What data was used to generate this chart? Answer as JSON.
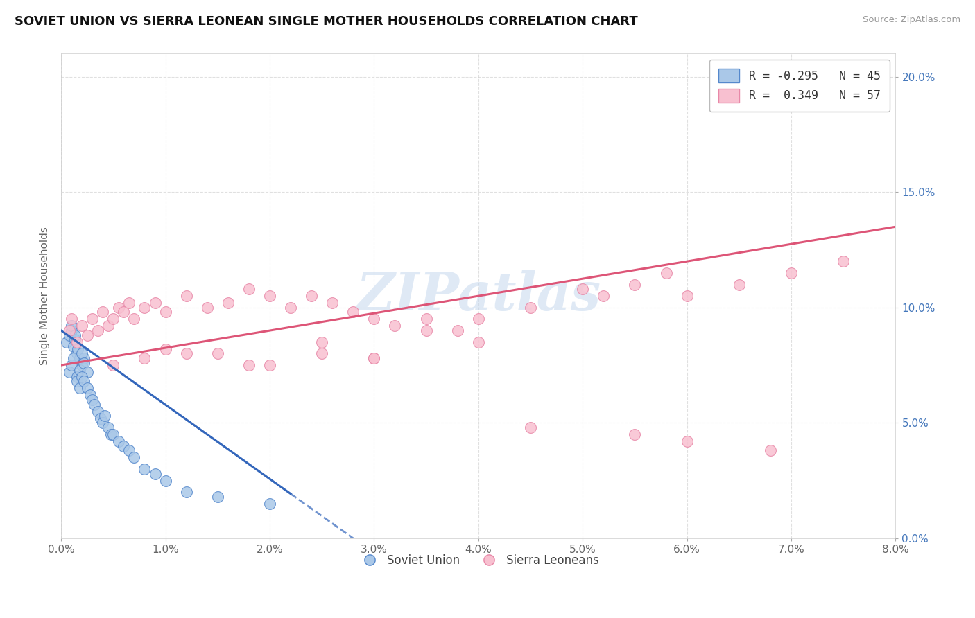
{
  "title": "SOVIET UNION VS SIERRA LEONEAN SINGLE MOTHER HOUSEHOLDS CORRELATION CHART",
  "source": "Source: ZipAtlas.com",
  "ylabel": "Single Mother Households",
  "xlim": [
    0.0,
    8.0
  ],
  "ylim": [
    0.0,
    21.0
  ],
  "x_ticks": [
    0.0,
    1.0,
    2.0,
    3.0,
    4.0,
    5.0,
    6.0,
    7.0,
    8.0
  ],
  "y_ticks": [
    0.0,
    5.0,
    10.0,
    15.0,
    20.0
  ],
  "legend_r_labels": [
    "R = -0.295   N = 45",
    "R =  0.349   N = 57"
  ],
  "legend_labels": [
    "Soviet Union",
    "Sierra Leoneans"
  ],
  "blue_face": "#aac8e8",
  "blue_edge": "#5588cc",
  "pink_face": "#f8c0d0",
  "pink_edge": "#e888a8",
  "blue_line": "#3366bb",
  "pink_line": "#dd5577",
  "watermark": "ZIPatlas",
  "soviet_x": [
    0.05,
    0.08,
    0.1,
    0.12,
    0.13,
    0.15,
    0.16,
    0.18,
    0.2,
    0.22,
    0.08,
    0.1,
    0.12,
    0.15,
    0.18,
    0.2,
    0.22,
    0.25,
    0.1,
    0.13,
    0.15,
    0.18,
    0.2,
    0.22,
    0.25,
    0.28,
    0.3,
    0.32,
    0.35,
    0.38,
    0.4,
    0.42,
    0.45,
    0.48,
    0.5,
    0.55,
    0.6,
    0.65,
    0.7,
    0.8,
    0.9,
    1.0,
    1.2,
    1.5,
    2.0
  ],
  "soviet_y": [
    8.5,
    8.8,
    9.0,
    8.3,
    8.6,
    8.0,
    8.2,
    7.8,
    7.5,
    7.8,
    7.2,
    7.5,
    7.8,
    7.0,
    7.3,
    8.0,
    7.6,
    7.2,
    9.2,
    8.8,
    6.8,
    6.5,
    7.0,
    6.8,
    6.5,
    6.2,
    6.0,
    5.8,
    5.5,
    5.2,
    5.0,
    5.3,
    4.8,
    4.5,
    4.5,
    4.2,
    4.0,
    3.8,
    3.5,
    3.0,
    2.8,
    2.5,
    2.0,
    1.8,
    1.5
  ],
  "sierra_x": [
    0.08,
    0.1,
    0.15,
    0.2,
    0.25,
    0.3,
    0.35,
    0.4,
    0.45,
    0.5,
    0.55,
    0.6,
    0.65,
    0.7,
    0.8,
    0.9,
    1.0,
    1.2,
    1.4,
    1.6,
    1.8,
    2.0,
    2.2,
    2.4,
    2.6,
    2.8,
    3.0,
    3.2,
    3.5,
    3.8,
    4.0,
    4.5,
    5.0,
    5.2,
    5.5,
    5.8,
    6.0,
    6.5,
    7.0,
    7.5,
    0.5,
    1.5,
    2.5,
    3.5,
    4.0,
    3.0,
    2.0,
    1.0,
    0.8,
    1.2,
    1.8,
    2.5,
    3.0,
    4.5,
    5.5,
    6.0,
    6.8
  ],
  "sierra_y": [
    9.0,
    9.5,
    8.5,
    9.2,
    8.8,
    9.5,
    9.0,
    9.8,
    9.2,
    9.5,
    10.0,
    9.8,
    10.2,
    9.5,
    10.0,
    10.2,
    9.8,
    10.5,
    10.0,
    10.2,
    10.8,
    10.5,
    10.0,
    10.5,
    10.2,
    9.8,
    9.5,
    9.2,
    9.5,
    9.0,
    9.5,
    10.0,
    10.8,
    10.5,
    11.0,
    11.5,
    10.5,
    11.0,
    11.5,
    12.0,
    7.5,
    8.0,
    8.5,
    9.0,
    8.5,
    7.8,
    7.5,
    8.2,
    7.8,
    8.0,
    7.5,
    8.0,
    7.8,
    4.8,
    4.5,
    4.2,
    3.8
  ],
  "blue_trend_x0": 0.0,
  "blue_trend_y0": 9.0,
  "blue_trend_x1": 2.8,
  "blue_trend_y1": 0.0,
  "pink_trend_x0": 0.0,
  "pink_trend_y0": 7.5,
  "pink_trend_x1": 8.0,
  "pink_trend_y1": 13.5
}
